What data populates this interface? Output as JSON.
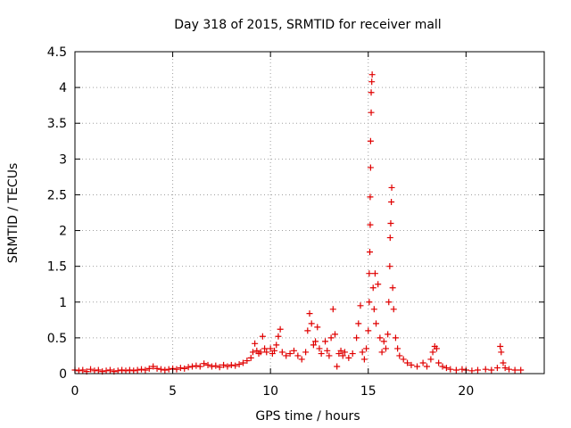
{
  "chart_data": {
    "type": "scatter",
    "title": "Day 318 of 2015, SRMTID for receiver mall",
    "xlabel": "GPS time / hours",
    "ylabel": "SRMTID / TECUs",
    "xlim": [
      0,
      24
    ],
    "ylim": [
      0,
      4.5
    ],
    "x_ticks": [
      0,
      5,
      10,
      15,
      20
    ],
    "x_tick_labels": [
      "0",
      "5",
      "10",
      "15",
      "20"
    ],
    "y_ticks": [
      0,
      0.5,
      1,
      1.5,
      2,
      2.5,
      3,
      3.5,
      4,
      4.5
    ],
    "y_tick_labels": [
      "0",
      "0.5",
      "1",
      "1.5",
      "2",
      "2.5",
      "3",
      "3.5",
      "4",
      "4.5"
    ],
    "grid": true,
    "marker": "+",
    "series_color": "#e00000",
    "series": [
      {
        "name": "SRMTID",
        "points": [
          [
            0.0,
            0.05
          ],
          [
            0.2,
            0.04
          ],
          [
            0.4,
            0.05
          ],
          [
            0.6,
            0.03
          ],
          [
            0.8,
            0.06
          ],
          [
            1.0,
            0.04
          ],
          [
            1.2,
            0.05
          ],
          [
            1.4,
            0.03
          ],
          [
            1.6,
            0.04
          ],
          [
            1.8,
            0.05
          ],
          [
            2.0,
            0.03
          ],
          [
            2.2,
            0.04
          ],
          [
            2.4,
            0.05
          ],
          [
            2.6,
            0.04
          ],
          [
            2.8,
            0.05
          ],
          [
            3.0,
            0.04
          ],
          [
            3.2,
            0.05
          ],
          [
            3.4,
            0.06
          ],
          [
            3.6,
            0.05
          ],
          [
            3.8,
            0.07
          ],
          [
            4.0,
            0.1
          ],
          [
            4.2,
            0.07
          ],
          [
            4.4,
            0.06
          ],
          [
            4.6,
            0.05
          ],
          [
            4.8,
            0.06
          ],
          [
            5.0,
            0.07
          ],
          [
            5.2,
            0.06
          ],
          [
            5.4,
            0.08
          ],
          [
            5.6,
            0.07
          ],
          [
            5.8,
            0.09
          ],
          [
            6.0,
            0.1
          ],
          [
            6.2,
            0.11
          ],
          [
            6.4,
            0.1
          ],
          [
            6.6,
            0.14
          ],
          [
            6.8,
            0.12
          ],
          [
            7.0,
            0.1
          ],
          [
            7.2,
            0.11
          ],
          [
            7.4,
            0.09
          ],
          [
            7.6,
            0.12
          ],
          [
            7.8,
            0.1
          ],
          [
            8.0,
            0.12
          ],
          [
            8.2,
            0.11
          ],
          [
            8.4,
            0.13
          ],
          [
            8.6,
            0.15
          ],
          [
            8.8,
            0.18
          ],
          [
            9.0,
            0.22
          ],
          [
            9.1,
            0.3
          ],
          [
            9.2,
            0.42
          ],
          [
            9.3,
            0.32
          ],
          [
            9.4,
            0.28
          ],
          [
            9.5,
            0.3
          ],
          [
            9.6,
            0.52
          ],
          [
            9.7,
            0.35
          ],
          [
            9.8,
            0.3
          ],
          [
            10.0,
            0.35
          ],
          [
            10.1,
            0.28
          ],
          [
            10.2,
            0.32
          ],
          [
            10.3,
            0.4
          ],
          [
            10.4,
            0.52
          ],
          [
            10.5,
            0.62
          ],
          [
            10.6,
            0.3
          ],
          [
            10.8,
            0.25
          ],
          [
            11.0,
            0.28
          ],
          [
            11.2,
            0.32
          ],
          [
            11.4,
            0.25
          ],
          [
            11.6,
            0.2
          ],
          [
            11.8,
            0.3
          ],
          [
            11.9,
            0.6
          ],
          [
            12.0,
            0.84
          ],
          [
            12.1,
            0.7
          ],
          [
            12.2,
            0.4
          ],
          [
            12.3,
            0.45
          ],
          [
            12.4,
            0.65
          ],
          [
            12.5,
            0.35
          ],
          [
            12.6,
            0.28
          ],
          [
            12.8,
            0.45
          ],
          [
            12.9,
            0.32
          ],
          [
            13.0,
            0.25
          ],
          [
            13.1,
            0.5
          ],
          [
            13.2,
            0.9
          ],
          [
            13.3,
            0.55
          ],
          [
            13.4,
            0.1
          ],
          [
            13.5,
            0.28
          ],
          [
            13.6,
            0.32
          ],
          [
            13.7,
            0.25
          ],
          [
            13.8,
            0.3
          ],
          [
            14.0,
            0.22
          ],
          [
            14.2,
            0.28
          ],
          [
            14.4,
            0.5
          ],
          [
            14.5,
            0.7
          ],
          [
            14.6,
            0.95
          ],
          [
            14.7,
            0.3
          ],
          [
            14.8,
            0.2
          ],
          [
            14.9,
            0.35
          ],
          [
            15.0,
            0.6
          ],
          [
            15.05,
            1.0
          ],
          [
            15.05,
            1.4
          ],
          [
            15.08,
            1.7
          ],
          [
            15.1,
            2.08
          ],
          [
            15.1,
            2.47
          ],
          [
            15.12,
            2.88
          ],
          [
            15.12,
            3.25
          ],
          [
            15.15,
            3.65
          ],
          [
            15.15,
            3.93
          ],
          [
            15.18,
            4.08
          ],
          [
            15.2,
            4.18
          ],
          [
            15.25,
            1.2
          ],
          [
            15.3,
            0.9
          ],
          [
            15.35,
            1.4
          ],
          [
            15.4,
            0.7
          ],
          [
            15.5,
            1.25
          ],
          [
            15.6,
            0.5
          ],
          [
            15.7,
            0.3
          ],
          [
            15.8,
            0.45
          ],
          [
            15.9,
            0.35
          ],
          [
            16.0,
            0.55
          ],
          [
            16.05,
            1.0
          ],
          [
            16.1,
            1.5
          ],
          [
            16.12,
            1.9
          ],
          [
            16.15,
            2.1
          ],
          [
            16.18,
            2.4
          ],
          [
            16.2,
            2.6
          ],
          [
            16.25,
            1.2
          ],
          [
            16.3,
            0.9
          ],
          [
            16.4,
            0.5
          ],
          [
            16.5,
            0.35
          ],
          [
            16.6,
            0.25
          ],
          [
            16.8,
            0.2
          ],
          [
            17.0,
            0.15
          ],
          [
            17.2,
            0.12
          ],
          [
            17.5,
            0.1
          ],
          [
            17.8,
            0.15
          ],
          [
            18.0,
            0.1
          ],
          [
            18.2,
            0.2
          ],
          [
            18.3,
            0.3
          ],
          [
            18.4,
            0.38
          ],
          [
            18.5,
            0.35
          ],
          [
            18.6,
            0.15
          ],
          [
            18.8,
            0.1
          ],
          [
            19.0,
            0.08
          ],
          [
            19.2,
            0.06
          ],
          [
            19.5,
            0.05
          ],
          [
            19.8,
            0.06
          ],
          [
            20.0,
            0.05
          ],
          [
            20.3,
            0.04
          ],
          [
            20.6,
            0.05
          ],
          [
            21.0,
            0.06
          ],
          [
            21.3,
            0.05
          ],
          [
            21.6,
            0.08
          ],
          [
            21.75,
            0.38
          ],
          [
            21.8,
            0.3
          ],
          [
            21.9,
            0.15
          ],
          [
            22.0,
            0.08
          ],
          [
            22.2,
            0.06
          ],
          [
            22.5,
            0.05
          ],
          [
            22.8,
            0.05
          ]
        ]
      }
    ]
  }
}
